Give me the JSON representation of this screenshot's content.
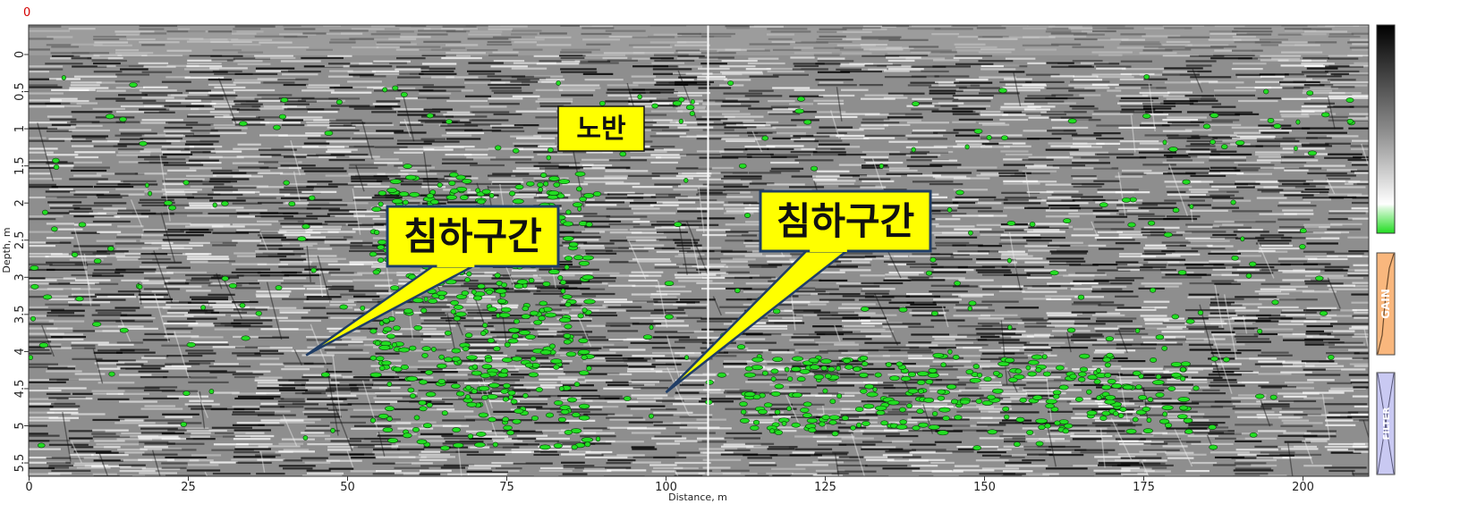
{
  "chart_data": {
    "type": "heatmap",
    "title": "",
    "marker_label": "0",
    "xlabel": "Distance, m",
    "ylabel": "Depth, m",
    "xlim": [
      0,
      209
    ],
    "ylim": [
      0,
      5.65
    ],
    "y_inverted": true,
    "x_ticks": [
      "0",
      "25",
      "50",
      "75",
      "100",
      "125",
      "150",
      "175",
      "200"
    ],
    "y_ticks": [
      "0",
      "0.5",
      "1",
      "1.5",
      "2",
      "2.5",
      "3",
      "3.5",
      "4",
      "4.5",
      "5",
      "5.5"
    ],
    "colormap": {
      "low": "#000000",
      "mid": "#808080",
      "high": "#ffffff",
      "peak": "#22dd22"
    },
    "vertical_marker_x": 106.6,
    "annotations": [
      {
        "text": "노반",
        "x": 87.5,
        "y": 1.0,
        "style": "yellow-box"
      },
      {
        "text": "침하구간",
        "x": 69,
        "y": 2.45,
        "style": "yellow-callout",
        "pointer": [
          43.5,
          4.05
        ]
      },
      {
        "text": "침하구간",
        "x": 127,
        "y": 2.2,
        "style": "yellow-callout",
        "pointer": [
          100,
          4.55
        ]
      }
    ],
    "side_panels": [
      {
        "name": "colorbar",
        "label": ""
      },
      {
        "name": "gain",
        "label": "GAIN"
      },
      {
        "name": "filter",
        "label": "FILTER"
      }
    ],
    "colors": {
      "callout_fill": "#ffff00",
      "callout_border": "#1f3d66",
      "gain_fill": "#f9b77d",
      "filter_fill": "#c9c9f2"
    }
  }
}
